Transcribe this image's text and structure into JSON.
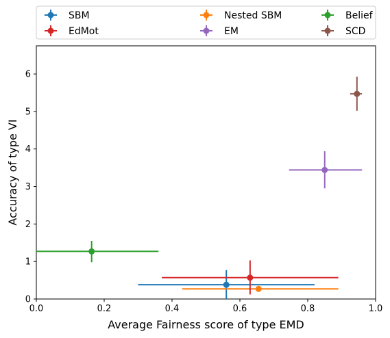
{
  "chart_data": {
    "type": "scatter",
    "xlabel": "Average Fairness score of type EMD",
    "ylabel": "Accuracy of type VI",
    "xlim": [
      0,
      1
    ],
    "ylim": [
      0,
      6.75
    ],
    "xticks": [
      0.0,
      0.2,
      0.4,
      0.6,
      0.8,
      1.0
    ],
    "xtick_labels": [
      "0.0",
      "0.2",
      "0.4",
      "0.6",
      "0.8",
      "1.0"
    ],
    "yticks": [
      0,
      1,
      2,
      3,
      4,
      5,
      6
    ],
    "ytick_labels": [
      "0",
      "1",
      "2",
      "3",
      "4",
      "5",
      "6"
    ],
    "grid": false,
    "legend_placement": "top, outside, 3 columns",
    "series": [
      {
        "name": "SBM",
        "color": "#1f77b4",
        "x": 0.56,
        "y": 0.38,
        "xerr": [
          0.3,
          0.82
        ],
        "yerr": [
          0.0,
          0.77
        ]
      },
      {
        "name": "Nested SBM",
        "color": "#ff7f0e",
        "x": 0.655,
        "y": 0.27,
        "xerr": [
          0.43,
          0.89
        ],
        "yerr": [
          0.2,
          0.34
        ]
      },
      {
        "name": "Belief",
        "color": "#2ca02c",
        "x": 0.163,
        "y": 1.27,
        "xerr": [
          0.0,
          0.36
        ],
        "yerr": [
          0.98,
          1.55
        ]
      },
      {
        "name": "EdMot",
        "color": "#d62728",
        "x": 0.63,
        "y": 0.57,
        "xerr": [
          0.37,
          0.89
        ],
        "yerr": [
          0.12,
          1.03
        ]
      },
      {
        "name": "EM",
        "color": "#9467bd",
        "x": 0.85,
        "y": 3.44,
        "xerr": [
          0.745,
          0.96
        ],
        "yerr": [
          2.95,
          3.94
        ]
      },
      {
        "name": "SCD",
        "color": "#8c564b",
        "x": 0.945,
        "y": 5.47,
        "xerr": [
          0.925,
          0.96
        ],
        "yerr": [
          5.02,
          5.93
        ]
      }
    ]
  }
}
